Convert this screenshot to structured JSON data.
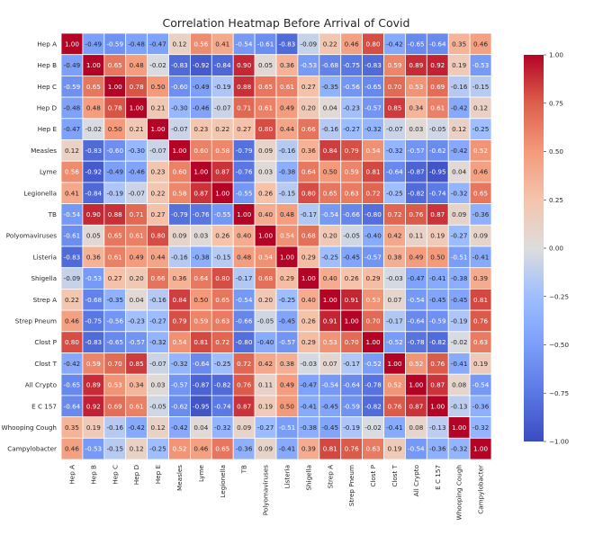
{
  "chart_data": {
    "type": "heatmap",
    "title": "Correlation Heatmap Before Arrival of Covid",
    "xlabel": "",
    "ylabel": "",
    "labels": [
      "Hep A",
      "Hep B",
      "Hep C",
      "Hep D",
      "Hep E",
      "Measles",
      "Lyme",
      "Legionella",
      "TB",
      "Polyomaviruses",
      "Listeria",
      "Shigella",
      "Strep A",
      "Strep Pneum",
      "Clost P",
      "Clost T",
      "All Crypto",
      "E C 157",
      "Whooping Cough",
      "Campylobacter"
    ],
    "matrix": [
      [
        1.0,
        -0.49,
        -0.59,
        -0.48,
        -0.47,
        0.12,
        0.56,
        0.41,
        -0.54,
        -0.61,
        -0.83,
        -0.09,
        0.22,
        0.46,
        0.8,
        -0.42,
        -0.65,
        -0.64,
        0.35,
        0.46
      ],
      [
        -0.49,
        1.0,
        0.65,
        0.48,
        -0.02,
        -0.83,
        -0.92,
        -0.84,
        0.9,
        0.05,
        0.36,
        -0.53,
        -0.68,
        -0.75,
        -0.83,
        0.59,
        0.89,
        0.92,
        0.19,
        -0.53
      ],
      [
        -0.59,
        0.65,
        1.0,
        0.78,
        0.5,
        -0.6,
        -0.49,
        -0.19,
        0.88,
        0.65,
        0.61,
        0.27,
        -0.35,
        -0.56,
        -0.65,
        0.7,
        0.53,
        0.69,
        -0.16,
        -0.15
      ],
      [
        -0.48,
        0.48,
        0.78,
        1.0,
        0.21,
        -0.3,
        -0.46,
        -0.07,
        0.71,
        0.61,
        0.49,
        0.2,
        0.04,
        -0.23,
        -0.57,
        0.85,
        0.34,
        0.61,
        -0.42,
        0.12
      ],
      [
        -0.47,
        -0.02,
        0.5,
        0.21,
        1.0,
        -0.07,
        0.23,
        0.22,
        0.27,
        0.8,
        0.44,
        0.66,
        -0.16,
        -0.27,
        -0.32,
        -0.07,
        0.03,
        -0.05,
        0.12,
        -0.25
      ],
      [
        0.12,
        -0.83,
        -0.6,
        -0.3,
        -0.07,
        1.0,
        0.6,
        0.58,
        -0.79,
        0.09,
        -0.16,
        0.36,
        0.84,
        0.79,
        0.54,
        -0.32,
        -0.57,
        -0.62,
        -0.42,
        0.52
      ],
      [
        0.56,
        -0.92,
        -0.49,
        -0.46,
        0.23,
        0.6,
        1.0,
        0.87,
        -0.76,
        0.03,
        -0.38,
        0.64,
        0.5,
        0.59,
        0.81,
        -0.64,
        -0.87,
        -0.95,
        0.04,
        0.46
      ],
      [
        0.41,
        -0.84,
        -0.19,
        -0.07,
        0.22,
        0.58,
        0.87,
        1.0,
        -0.55,
        0.26,
        -0.15,
        0.8,
        0.65,
        0.63,
        0.72,
        -0.25,
        -0.82,
        -0.74,
        -0.32,
        0.65
      ],
      [
        -0.54,
        0.9,
        0.88,
        0.71,
        0.27,
        -0.79,
        -0.76,
        -0.55,
        1.0,
        0.4,
        0.48,
        -0.17,
        -0.54,
        -0.66,
        -0.8,
        0.72,
        0.76,
        0.87,
        0.09,
        -0.36
      ],
      [
        -0.61,
        0.05,
        0.65,
        0.61,
        0.8,
        0.09,
        0.03,
        0.26,
        0.4,
        1.0,
        0.54,
        0.68,
        0.2,
        -0.05,
        -0.4,
        0.42,
        0.11,
        0.19,
        -0.27,
        0.09
      ],
      [
        -0.83,
        0.36,
        0.61,
        0.49,
        0.44,
        -0.16,
        -0.38,
        -0.15,
        0.48,
        0.54,
        1.0,
        0.29,
        -0.25,
        -0.45,
        -0.57,
        0.38,
        0.49,
        0.5,
        -0.51,
        -0.41
      ],
      [
        -0.09,
        -0.53,
        0.27,
        0.2,
        0.66,
        0.36,
        0.64,
        0.8,
        -0.17,
        0.68,
        0.29,
        1.0,
        0.4,
        0.26,
        0.29,
        -0.03,
        -0.47,
        -0.41,
        -0.38,
        0.39
      ],
      [
        0.22,
        -0.68,
        -0.35,
        0.04,
        -0.16,
        0.84,
        0.5,
        0.65,
        -0.54,
        0.2,
        -0.25,
        0.4,
        1.0,
        0.91,
        0.53,
        0.07,
        -0.54,
        -0.45,
        -0.45,
        0.81
      ],
      [
        0.46,
        -0.75,
        -0.56,
        -0.23,
        -0.27,
        0.79,
        0.59,
        0.63,
        -0.66,
        -0.05,
        -0.45,
        0.26,
        0.91,
        1.0,
        0.7,
        -0.17,
        -0.64,
        -0.59,
        -0.19,
        0.76
      ],
      [
        0.8,
        -0.83,
        -0.65,
        -0.57,
        -0.32,
        0.54,
        0.81,
        0.72,
        -0.8,
        -0.4,
        -0.57,
        0.29,
        0.53,
        0.7,
        1.0,
        -0.52,
        -0.78,
        -0.82,
        -0.02,
        0.63
      ],
      [
        -0.42,
        0.59,
        0.7,
        0.85,
        -0.07,
        -0.32,
        -0.64,
        -0.25,
        0.72,
        0.42,
        0.38,
        -0.03,
        0.07,
        -0.17,
        -0.52,
        1.0,
        0.52,
        0.76,
        -0.41,
        0.19
      ],
      [
        -0.65,
        0.89,
        0.53,
        0.34,
        0.03,
        -0.57,
        -0.87,
        -0.82,
        0.76,
        0.11,
        0.49,
        -0.47,
        -0.54,
        -0.64,
        -0.78,
        0.52,
        1.0,
        0.87,
        0.08,
        -0.54
      ],
      [
        -0.64,
        0.92,
        0.69,
        0.61,
        -0.05,
        -0.62,
        -0.95,
        -0.74,
        0.87,
        0.19,
        0.5,
        -0.41,
        -0.45,
        -0.59,
        -0.82,
        0.76,
        0.87,
        1.0,
        -0.13,
        -0.36
      ],
      [
        0.35,
        0.19,
        -0.16,
        -0.42,
        0.12,
        -0.42,
        0.04,
        -0.32,
        0.09,
        -0.27,
        -0.51,
        -0.38,
        -0.45,
        -0.19,
        -0.02,
        -0.41,
        0.08,
        -0.13,
        1.0,
        -0.32
      ],
      [
        0.46,
        -0.53,
        -0.15,
        0.12,
        -0.25,
        0.52,
        0.46,
        0.65,
        -0.36,
        0.09,
        -0.41,
        0.39,
        0.81,
        0.76,
        0.63,
        0.19,
        -0.54,
        -0.36,
        -0.32,
        1.0
      ]
    ],
    "value_format": "2 decimals",
    "colormap": "coolwarm",
    "vmin": -1.0,
    "vmax": 1.0,
    "colorbar": {
      "placement": "right",
      "ticks": [
        1.0,
        0.75,
        0.5,
        0.25,
        0.0,
        -0.25,
        -0.5,
        -0.75,
        -1.0
      ],
      "tick_labels": [
        "1.00",
        "0.75",
        "0.50",
        "0.25",
        "0.00",
        "−0.25",
        "−0.50",
        "−0.75",
        "−1.00"
      ]
    },
    "grid": false,
    "colors": {
      "low": "#3b4cc0",
      "mid": "#dddddd",
      "high": "#b40426"
    }
  }
}
